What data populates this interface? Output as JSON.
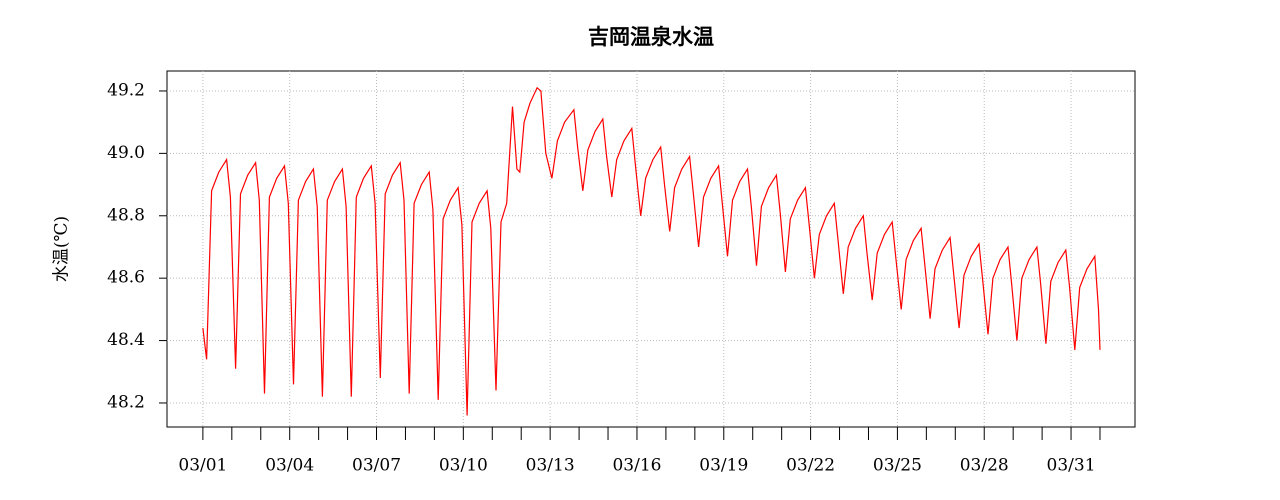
{
  "chart_data": {
    "type": "line",
    "title": "吉岡温泉水温",
    "y_label": "水温(℃)",
    "x": [
      1.0,
      1.13,
      1.3,
      1.55,
      1.82,
      1.95,
      2.13,
      2.3,
      2.55,
      2.82,
      2.95,
      3.13,
      3.3,
      3.55,
      3.82,
      3.95,
      4.13,
      4.3,
      4.55,
      4.82,
      4.95,
      5.13,
      5.3,
      5.55,
      5.82,
      5.95,
      6.13,
      6.3,
      6.55,
      6.82,
      6.95,
      7.13,
      7.3,
      7.55,
      7.82,
      7.95,
      8.13,
      8.3,
      8.55,
      8.82,
      8.95,
      9.13,
      9.3,
      9.55,
      9.82,
      9.95,
      10.13,
      10.3,
      10.55,
      10.82,
      10.95,
      11.13,
      11.3,
      11.5,
      11.7,
      11.85,
      11.95,
      12.1,
      12.3,
      12.55,
      12.68,
      12.85,
      13.06,
      13.25,
      13.5,
      13.82,
      13.95,
      14.13,
      14.3,
      14.55,
      14.82,
      14.95,
      15.13,
      15.3,
      15.55,
      15.82,
      15.95,
      16.13,
      16.3,
      16.55,
      16.82,
      16.95,
      17.13,
      17.3,
      17.55,
      17.82,
      17.95,
      18.13,
      18.3,
      18.55,
      18.82,
      18.95,
      19.13,
      19.3,
      19.55,
      19.82,
      19.95,
      20.13,
      20.3,
      20.55,
      20.82,
      20.95,
      21.13,
      21.3,
      21.55,
      21.82,
      21.95,
      22.13,
      22.3,
      22.55,
      22.82,
      22.95,
      23.13,
      23.3,
      23.55,
      23.82,
      23.95,
      24.13,
      24.3,
      24.55,
      24.82,
      24.95,
      25.13,
      25.3,
      25.55,
      25.82,
      25.95,
      26.13,
      26.3,
      26.55,
      26.82,
      26.95,
      27.13,
      27.3,
      27.55,
      27.82,
      27.95,
      28.13,
      28.3,
      28.55,
      28.82,
      28.95,
      29.13,
      29.3,
      29.55,
      29.82,
      29.95,
      30.13,
      30.3,
      30.55,
      30.82,
      30.95,
      31.13,
      31.3,
      31.55,
      31.82,
      31.95,
      32.0
    ],
    "series": [
      {
        "name": "水温",
        "color": "#ff0000",
        "values": [
          48.44,
          48.34,
          48.88,
          48.94,
          48.98,
          48.86,
          48.31,
          48.87,
          48.93,
          48.97,
          48.85,
          48.23,
          48.86,
          48.92,
          48.96,
          48.84,
          48.26,
          48.85,
          48.91,
          48.95,
          48.83,
          48.22,
          48.85,
          48.91,
          48.95,
          48.83,
          48.22,
          48.86,
          48.92,
          48.96,
          48.84,
          48.28,
          48.87,
          48.93,
          48.97,
          48.85,
          48.23,
          48.84,
          48.9,
          48.94,
          48.82,
          48.21,
          48.79,
          48.85,
          48.89,
          48.77,
          48.16,
          48.78,
          48.84,
          48.88,
          48.76,
          48.24,
          48.78,
          48.84,
          49.15,
          48.95,
          48.94,
          49.1,
          49.16,
          49.21,
          49.2,
          49.0,
          48.92,
          49.04,
          49.1,
          49.14,
          49.02,
          48.88,
          49.01,
          49.07,
          49.11,
          48.99,
          48.86,
          48.98,
          49.04,
          49.08,
          48.96,
          48.8,
          48.92,
          48.98,
          49.02,
          48.9,
          48.75,
          48.89,
          48.95,
          48.99,
          48.87,
          48.7,
          48.86,
          48.92,
          48.96,
          48.84,
          48.67,
          48.85,
          48.91,
          48.95,
          48.83,
          48.64,
          48.83,
          48.89,
          48.93,
          48.81,
          48.62,
          48.79,
          48.85,
          48.89,
          48.77,
          48.6,
          48.74,
          48.8,
          48.84,
          48.72,
          48.55,
          48.7,
          48.76,
          48.8,
          48.68,
          48.53,
          48.68,
          48.74,
          48.78,
          48.66,
          48.5,
          48.66,
          48.72,
          48.76,
          48.64,
          48.47,
          48.63,
          48.69,
          48.73,
          48.61,
          48.44,
          48.61,
          48.67,
          48.71,
          48.59,
          48.42,
          48.6,
          48.66,
          48.7,
          48.58,
          48.4,
          48.6,
          48.66,
          48.7,
          48.58,
          48.39,
          48.59,
          48.65,
          48.69,
          48.57,
          48.37,
          48.57,
          48.63,
          48.67,
          48.5,
          48.37
        ]
      }
    ],
    "xlim": [
      -0.24,
      33.21
    ],
    "ylim": [
      48.123,
      49.264
    ],
    "xticks": [
      {
        "value": 1,
        "label": "03/01"
      },
      {
        "value": 2,
        "label": null
      },
      {
        "value": 3,
        "label": null
      },
      {
        "value": 4,
        "label": "03/04"
      },
      {
        "value": 5,
        "label": null
      },
      {
        "value": 6,
        "label": null
      },
      {
        "value": 7,
        "label": "03/07"
      },
      {
        "value": 8,
        "label": null
      },
      {
        "value": 9,
        "label": null
      },
      {
        "value": 10,
        "label": "03/10"
      },
      {
        "value": 11,
        "label": null
      },
      {
        "value": 12,
        "label": null
      },
      {
        "value": 13,
        "label": "03/13"
      },
      {
        "value": 14,
        "label": null
      },
      {
        "value": 15,
        "label": null
      },
      {
        "value": 16,
        "label": "03/16"
      },
      {
        "value": 17,
        "label": null
      },
      {
        "value": 18,
        "label": null
      },
      {
        "value": 19,
        "label": "03/19"
      },
      {
        "value": 20,
        "label": null
      },
      {
        "value": 21,
        "label": null
      },
      {
        "value": 22,
        "label": "03/22"
      },
      {
        "value": 23,
        "label": null
      },
      {
        "value": 24,
        "label": null
      },
      {
        "value": 25,
        "label": "03/25"
      },
      {
        "value": 26,
        "label": null
      },
      {
        "value": 27,
        "label": null
      },
      {
        "value": 28,
        "label": "03/28"
      },
      {
        "value": 29,
        "label": null
      },
      {
        "value": 30,
        "label": null
      },
      {
        "value": 31,
        "label": "03/31"
      },
      {
        "value": 32,
        "label": null
      }
    ],
    "yticks": [
      {
        "value": 48.2,
        "label": "48.2"
      },
      {
        "value": 48.4,
        "label": "48.4"
      },
      {
        "value": 48.6,
        "label": "48.6"
      },
      {
        "value": 48.8,
        "label": "48.8"
      },
      {
        "value": 49.0,
        "label": "49.0"
      },
      {
        "value": 49.2,
        "label": "49.2"
      }
    ],
    "grid": true
  }
}
